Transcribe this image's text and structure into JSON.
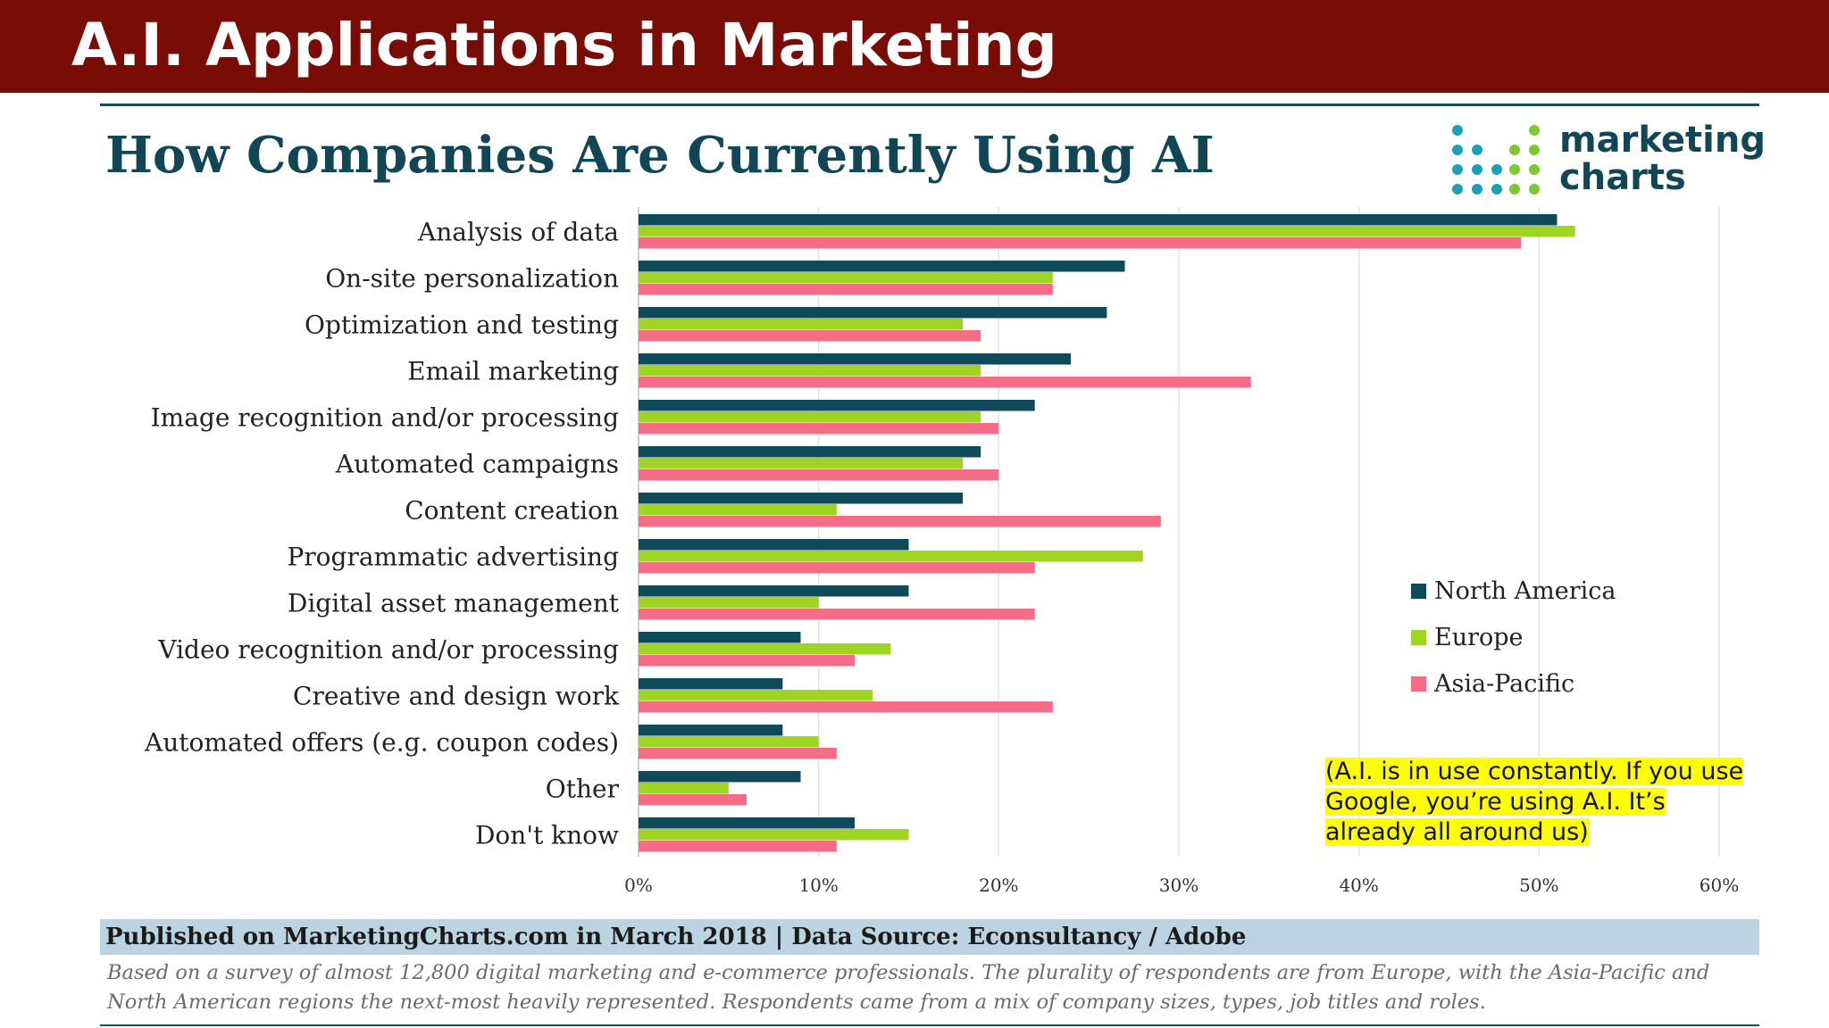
{
  "slide": {
    "title": "A.I. Applications in Marketing"
  },
  "logo": {
    "line1": "marketing",
    "line2": "charts",
    "icon": "dot-grid-logo-icon"
  },
  "annotation": {
    "text": "(A.I. is in use constantly. If you use Google, you’re using A.I. It’s already all around us)"
  },
  "footer": {
    "published": "Published on MarketingCharts.com in March 2018 | Data Source: Econsultancy / Adobe",
    "note": "Based on a survey of almost 12,800 digital marketing and e-commerce professionals. The plurality of respondents are from Europe, with the Asia-Pacific and North American regions the next-most heavily represented. Respondents came from a mix of company sizes, types, job titles and roles."
  },
  "colors": {
    "header": "#7a0c06",
    "title": "#114656",
    "north_america": "#0f4a5b",
    "europe": "#9ed522",
    "asia_pacific": "#f56c87",
    "grid": "#e3e3e3"
  },
  "chart_data": {
    "type": "bar",
    "orientation": "horizontal",
    "title": "How Companies Are Currently Using AI",
    "categories": [
      "Analysis of data",
      "On-site personalization",
      "Optimization and testing",
      "Email marketing",
      "Image recognition and/or processing",
      "Automated campaigns",
      "Content creation",
      "Programmatic advertising",
      "Digital asset management",
      "Video recognition and/or processing",
      "Creative and design work",
      "Automated offers (e.g. coupon codes)",
      "Other",
      "Don't know"
    ],
    "series": [
      {
        "name": "North America",
        "color": "#0f4a5b",
        "values": [
          51,
          27,
          26,
          24,
          22,
          19,
          18,
          15,
          15,
          9,
          8,
          8,
          9,
          12
        ]
      },
      {
        "name": "Europe",
        "color": "#9ed522",
        "values": [
          52,
          23,
          18,
          19,
          19,
          18,
          11,
          28,
          10,
          14,
          13,
          10,
          5,
          15
        ]
      },
      {
        "name": "Asia-Pacific",
        "color": "#f56c87",
        "values": [
          49,
          23,
          19,
          34,
          20,
          20,
          29,
          22,
          22,
          12,
          23,
          11,
          6,
          11
        ]
      }
    ],
    "xlim": [
      0,
      60
    ],
    "xticks": [
      "0%",
      "10%",
      "20%",
      "30%",
      "40%",
      "50%",
      "60%"
    ],
    "xlabel": "",
    "ylabel": "",
    "grid": true,
    "legend": "right"
  }
}
